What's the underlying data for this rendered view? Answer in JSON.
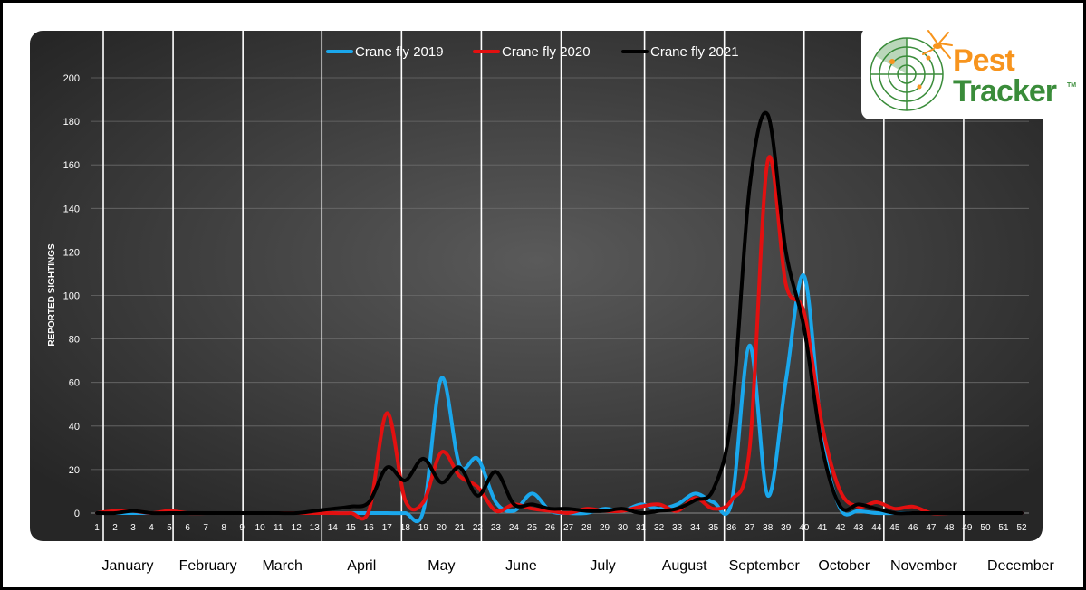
{
  "chart_data": {
    "type": "line",
    "ylabel": "REPORTED SIGHTINGS",
    "ylim": [
      0,
      200
    ],
    "yticks": [
      0,
      20,
      40,
      60,
      80,
      100,
      120,
      140,
      160,
      180,
      200
    ],
    "x": [
      1,
      2,
      3,
      4,
      5,
      6,
      7,
      8,
      9,
      10,
      11,
      12,
      13,
      14,
      15,
      16,
      17,
      18,
      19,
      20,
      21,
      22,
      23,
      24,
      25,
      26,
      27,
      28,
      29,
      30,
      31,
      32,
      33,
      34,
      35,
      36,
      37,
      38,
      39,
      40,
      41,
      42,
      43,
      44,
      45,
      46,
      47,
      48,
      49,
      50,
      51,
      52
    ],
    "legend_position": "top",
    "grid": true,
    "months": [
      "January",
      "February",
      "March",
      "April",
      "May",
      "June",
      "July",
      "August",
      "September",
      "October",
      "November",
      "December"
    ],
    "series": [
      {
        "name": "Crane fly 2019",
        "color": "#1aa7ec",
        "values": [
          0,
          0,
          0,
          0,
          0,
          0,
          0,
          0,
          0,
          0,
          0,
          0,
          0,
          0,
          0,
          0,
          0,
          0,
          1,
          62,
          22,
          25,
          5,
          1,
          9,
          1,
          0,
          0,
          2,
          1,
          4,
          2,
          4,
          9,
          5,
          5,
          77,
          8,
          61,
          109,
          35,
          2,
          1,
          0,
          0,
          0,
          0,
          0,
          0,
          0,
          0,
          0
        ]
      },
      {
        "name": "Crane fly 2020",
        "color": "#e31010",
        "values": [
          0,
          1,
          1,
          0,
          1,
          0,
          0,
          0,
          0,
          0,
          0,
          0,
          0,
          0,
          0,
          1,
          46,
          6,
          5,
          28,
          17,
          12,
          1,
          4,
          2,
          1,
          0,
          2,
          1,
          1,
          3,
          4,
          1,
          7,
          2,
          6,
          30,
          162,
          105,
          92,
          40,
          10,
          3,
          5,
          2,
          3,
          0,
          0,
          0,
          0,
          0,
          0
        ]
      },
      {
        "name": "Crane fly 2021",
        "color": "#000000",
        "values": [
          0,
          0,
          1,
          0,
          0,
          0,
          0,
          0,
          0,
          0,
          0,
          0,
          1,
          2,
          3,
          5,
          21,
          15,
          25,
          14,
          21,
          8,
          19,
          4,
          4,
          2,
          2,
          1,
          1,
          2,
          0,
          1,
          2,
          6,
          11,
          45,
          150,
          183,
          120,
          85,
          30,
          3,
          4,
          2,
          0,
          0,
          0,
          0,
          0,
          0,
          0,
          0
        ]
      }
    ]
  },
  "logo": {
    "line1": "Pest",
    "line2": "Tracker",
    "trademark": "TM"
  },
  "colors": {
    "plot_bg": "#3c3c3c",
    "month_divider": "#ffffff",
    "logo_orange": "#f7941d",
    "logo_green": "#3a8c3a"
  }
}
